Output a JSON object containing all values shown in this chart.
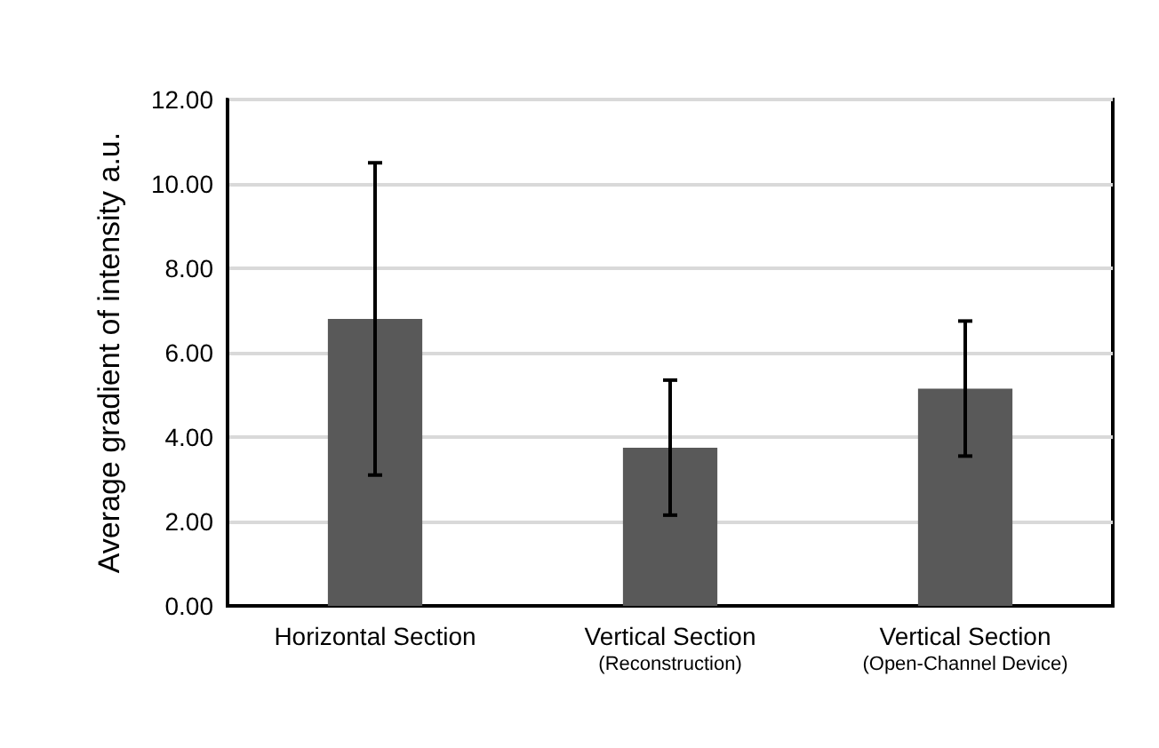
{
  "chart_data": {
    "type": "bar",
    "ylabel": "Average gradient of intensity a.u.",
    "categories": [
      "Horizontal Section",
      "Vertical Section\n(Reconstruction)",
      "Vertical Section\n(Open-Channel Device)"
    ],
    "values": [
      6.8,
      3.75,
      5.15
    ],
    "errors": [
      3.7,
      1.6,
      1.6
    ],
    "color": "#595959",
    "ylim": [
      0,
      12
    ],
    "yticks": [
      {
        "value": 0,
        "label": "0.00"
      },
      {
        "value": 2,
        "label": "2.00"
      },
      {
        "value": 4,
        "label": "4.00"
      },
      {
        "value": 6,
        "label": "6.00"
      },
      {
        "value": 8,
        "label": "8.00"
      },
      {
        "value": 10,
        "label": "10.00"
      },
      {
        "value": 12,
        "label": "12.00"
      }
    ],
    "grid": "y"
  }
}
